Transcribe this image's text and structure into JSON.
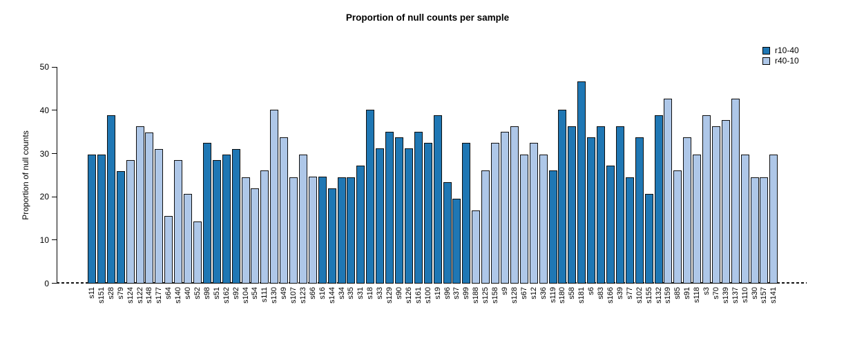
{
  "chart_data": {
    "type": "bar",
    "title": "Proportion of null counts per sample",
    "xlabel": "",
    "ylabel": "Proportion of null counts",
    "ylim": [
      0,
      50
    ],
    "yticks": [
      0,
      10,
      20,
      30,
      40,
      50
    ],
    "grid": false,
    "legend_position": "top-right",
    "legend": [
      {
        "label": "r10-40",
        "color": "#1f77b4"
      },
      {
        "label": "r40-10",
        "color": "#aec7e8"
      }
    ],
    "points": [
      {
        "label": "s11",
        "value": 29.8,
        "series": "r10-40"
      },
      {
        "label": "s151",
        "value": 29.8,
        "series": "r10-40"
      },
      {
        "label": "s28",
        "value": 39.0,
        "series": "r10-40"
      },
      {
        "label": "s79",
        "value": 26.0,
        "series": "r10-40"
      },
      {
        "label": "s124",
        "value": 28.6,
        "series": "r40-10"
      },
      {
        "label": "s122",
        "value": 36.4,
        "series": "r40-10"
      },
      {
        "label": "s148",
        "value": 35.0,
        "series": "r40-10"
      },
      {
        "label": "s177",
        "value": 31.2,
        "series": "r40-10"
      },
      {
        "label": "s64",
        "value": 15.6,
        "series": "r40-10"
      },
      {
        "label": "s140",
        "value": 28.5,
        "series": "r40-10"
      },
      {
        "label": "s40",
        "value": 20.8,
        "series": "r40-10"
      },
      {
        "label": "s52",
        "value": 14.3,
        "series": "r40-10"
      },
      {
        "label": "s98",
        "value": 32.5,
        "series": "r10-40"
      },
      {
        "label": "s51",
        "value": 28.6,
        "series": "r10-40"
      },
      {
        "label": "s162",
        "value": 29.9,
        "series": "r10-40"
      },
      {
        "label": "s92",
        "value": 31.2,
        "series": "r10-40"
      },
      {
        "label": "s104",
        "value": 24.6,
        "series": "r40-10"
      },
      {
        "label": "s54",
        "value": 22.1,
        "series": "r40-10"
      },
      {
        "label": "s111",
        "value": 26.1,
        "series": "r40-10"
      },
      {
        "label": "s130",
        "value": 40.2,
        "series": "r40-10"
      },
      {
        "label": "s49",
        "value": 33.8,
        "series": "r40-10"
      },
      {
        "label": "s107",
        "value": 24.6,
        "series": "r40-10"
      },
      {
        "label": "s123",
        "value": 29.8,
        "series": "r40-10"
      },
      {
        "label": "s66",
        "value": 24.7,
        "series": "r40-10"
      },
      {
        "label": "s16",
        "value": 24.7,
        "series": "r10-40"
      },
      {
        "label": "s144",
        "value": 22.1,
        "series": "r10-40"
      },
      {
        "label": "s34",
        "value": 24.6,
        "series": "r10-40"
      },
      {
        "label": "s35",
        "value": 24.6,
        "series": "r10-40"
      },
      {
        "label": "s31",
        "value": 27.3,
        "series": "r10-40"
      },
      {
        "label": "s18",
        "value": 40.2,
        "series": "r10-40"
      },
      {
        "label": "s33",
        "value": 31.3,
        "series": "r10-40"
      },
      {
        "label": "s129",
        "value": 35.1,
        "series": "r10-40"
      },
      {
        "label": "s90",
        "value": 33.8,
        "series": "r10-40"
      },
      {
        "label": "s126",
        "value": 31.3,
        "series": "r10-40"
      },
      {
        "label": "s161",
        "value": 35.1,
        "series": "r10-40"
      },
      {
        "label": "s100",
        "value": 32.5,
        "series": "r10-40"
      },
      {
        "label": "s19",
        "value": 39.0,
        "series": "r10-40"
      },
      {
        "label": "s96",
        "value": 23.4,
        "series": "r10-40"
      },
      {
        "label": "s37",
        "value": 19.6,
        "series": "r10-40"
      },
      {
        "label": "s99",
        "value": 32.5,
        "series": "r10-40"
      },
      {
        "label": "s188",
        "value": 16.9,
        "series": "r40-10"
      },
      {
        "label": "s125",
        "value": 26.1,
        "series": "r40-10"
      },
      {
        "label": "s158",
        "value": 32.5,
        "series": "r40-10"
      },
      {
        "label": "s9",
        "value": 35.1,
        "series": "r40-10"
      },
      {
        "label": "s128",
        "value": 36.4,
        "series": "r40-10"
      },
      {
        "label": "s67",
        "value": 29.9,
        "series": "r40-10"
      },
      {
        "label": "s12",
        "value": 32.5,
        "series": "r40-10"
      },
      {
        "label": "s36",
        "value": 29.8,
        "series": "r40-10"
      },
      {
        "label": "s119",
        "value": 26.1,
        "series": "r10-40"
      },
      {
        "label": "s180",
        "value": 40.2,
        "series": "r10-40"
      },
      {
        "label": "s58",
        "value": 36.4,
        "series": "r10-40"
      },
      {
        "label": "s181",
        "value": 46.8,
        "series": "r10-40"
      },
      {
        "label": "s6",
        "value": 33.8,
        "series": "r10-40"
      },
      {
        "label": "s83",
        "value": 36.4,
        "series": "r10-40"
      },
      {
        "label": "s166",
        "value": 27.3,
        "series": "r10-40"
      },
      {
        "label": "s39",
        "value": 36.4,
        "series": "r10-40"
      },
      {
        "label": "s77",
        "value": 24.6,
        "series": "r10-40"
      },
      {
        "label": "s102",
        "value": 33.8,
        "series": "r10-40"
      },
      {
        "label": "s155",
        "value": 20.8,
        "series": "r10-40"
      },
      {
        "label": "s132",
        "value": 39.0,
        "series": "r10-40"
      },
      {
        "label": "s159",
        "value": 42.8,
        "series": "r40-10"
      },
      {
        "label": "s85",
        "value": 26.1,
        "series": "r40-10"
      },
      {
        "label": "s91",
        "value": 33.8,
        "series": "r40-10"
      },
      {
        "label": "s118",
        "value": 29.9,
        "series": "r40-10"
      },
      {
        "label": "s3",
        "value": 39.0,
        "series": "r40-10"
      },
      {
        "label": "s70",
        "value": 36.4,
        "series": "r40-10"
      },
      {
        "label": "s139",
        "value": 37.8,
        "series": "r40-10"
      },
      {
        "label": "s137",
        "value": 42.8,
        "series": "r40-10"
      },
      {
        "label": "s110",
        "value": 29.9,
        "series": "r40-10"
      },
      {
        "label": "s30",
        "value": 24.6,
        "series": "r40-10"
      },
      {
        "label": "s157",
        "value": 24.6,
        "series": "r40-10"
      },
      {
        "label": "s141",
        "value": 29.8,
        "series": "r40-10"
      }
    ]
  }
}
